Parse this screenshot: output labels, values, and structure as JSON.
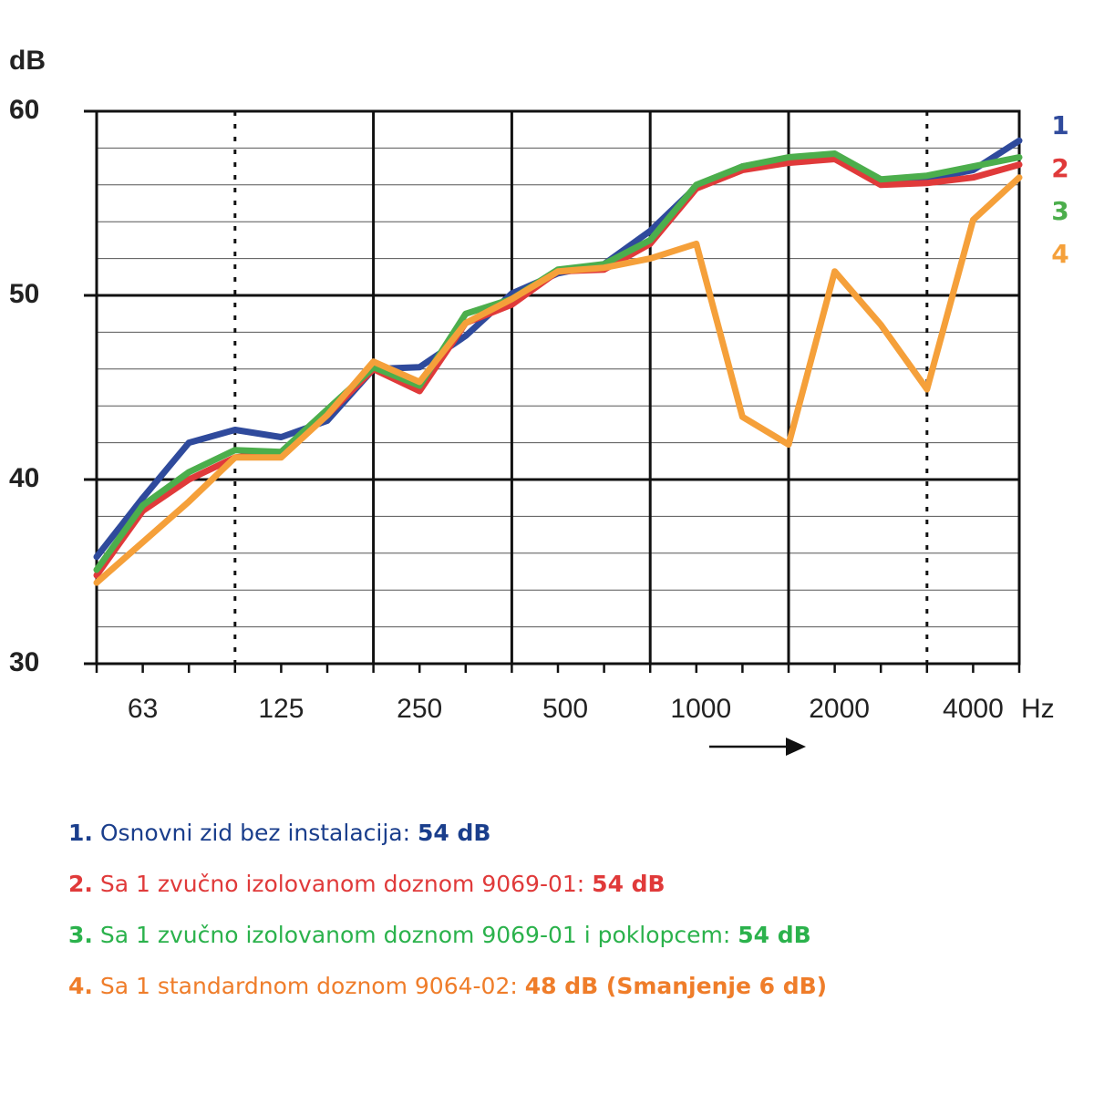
{
  "chart_data": {
    "type": "line",
    "ylabel": "dB",
    "xunit": "Hz",
    "ylim": [
      30,
      60
    ],
    "yticks": [
      "30",
      "40",
      "50",
      "60"
    ],
    "xtick_labels": [
      "63",
      "125",
      "250",
      "500",
      "1000",
      "2000",
      "4000"
    ],
    "x": [
      50,
      63,
      80,
      100,
      125,
      160,
      200,
      250,
      315,
      400,
      500,
      630,
      800,
      1000,
      1250,
      1600,
      2000,
      2500,
      3150,
      4000,
      5000
    ],
    "series": [
      {
        "name": "1",
        "color": "#2f4a9c",
        "values": [
          35.8,
          39.0,
          42.0,
          42.7,
          42.3,
          43.2,
          46.0,
          46.1,
          47.8,
          50.1,
          51.2,
          51.7,
          53.5,
          55.9,
          57.0,
          57.4,
          57.5,
          56.1,
          56.3,
          56.8,
          58.4
        ]
      },
      {
        "name": "2",
        "color": "#e03a3a",
        "values": [
          34.8,
          38.3,
          40.0,
          41.2,
          41.5,
          43.5,
          46.0,
          44.8,
          48.5,
          49.5,
          51.3,
          51.4,
          52.8,
          55.8,
          56.8,
          57.2,
          57.4,
          56.0,
          56.1,
          56.4,
          57.1
        ]
      },
      {
        "name": "3",
        "color": "#4cae4c",
        "values": [
          35.1,
          38.6,
          40.4,
          41.6,
          41.5,
          43.8,
          46.1,
          45.1,
          49.0,
          49.8,
          51.4,
          51.7,
          53.0,
          56.0,
          57.0,
          57.5,
          57.7,
          56.3,
          56.5,
          57.0,
          57.5
        ]
      },
      {
        "name": "4",
        "color": "#f5a03a",
        "values": [
          34.4,
          36.6,
          38.8,
          41.2,
          41.2,
          43.5,
          46.4,
          45.3,
          48.5,
          49.8,
          51.3,
          51.5,
          52.0,
          52.8,
          43.4,
          41.9,
          51.3,
          48.4,
          44.9,
          54.1,
          56.4
        ]
      }
    ]
  },
  "legend": [
    {
      "num": "1.",
      "text": "Osnovni zid bez instalacija:",
      "value": "54 dB",
      "color": "#1a3e8c"
    },
    {
      "num": "2.",
      "text": "Sa 1 zvučno izolovanom doznom 9069-01:",
      "value": "54 dB",
      "color": "#e03a3a"
    },
    {
      "num": "3.",
      "text": "Sa 1 zvučno izolovanom doznom 9069-01 i poklopcem:",
      "value": "54 dB",
      "color": "#2bb24c"
    },
    {
      "num": "4.",
      "text": "Sa 1 standardnom doznom 9064-02:",
      "value": "48 dB (Smanjenje 6 dB)",
      "color": "#ef7d2a"
    }
  ]
}
